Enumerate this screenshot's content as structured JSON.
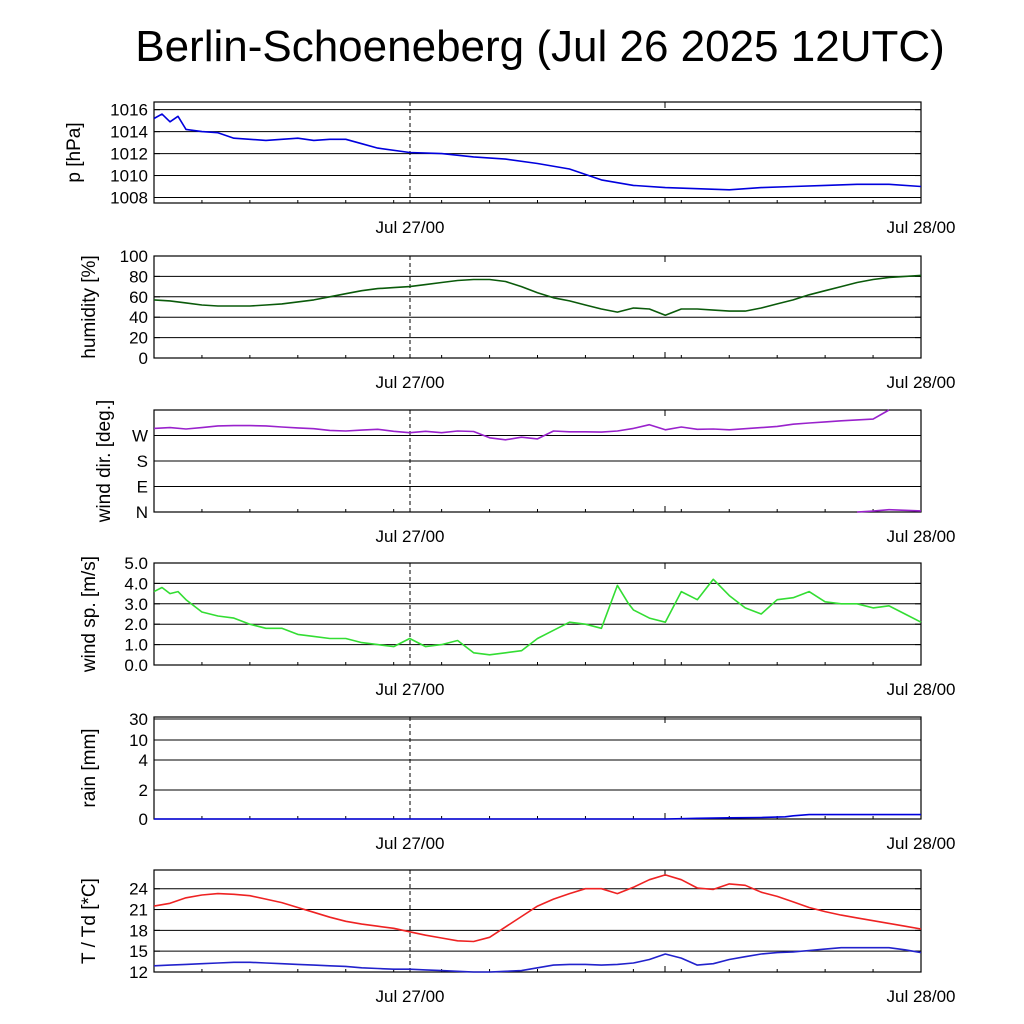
{
  "title": "Berlin-Schoeneberg (Jul 26 2025 12UTC)",
  "chart_data": [
    {
      "type": "line",
      "ylabel": "p [hPa]",
      "x_tick_labels": [
        "Jul 27/00",
        "Jul 28/00"
      ],
      "ylim": [
        1007.5,
        1016.7
      ],
      "yticks": [
        "1016",
        "1014",
        "1012",
        "1010",
        "1008"
      ],
      "ytick_values": [
        1016,
        1014,
        1012,
        1010,
        1008
      ],
      "color": "#0000dd",
      "x": [
        0,
        0.5,
        1,
        1.5,
        2,
        3,
        4,
        5,
        6,
        7,
        8,
        9,
        10,
        11,
        12,
        13,
        14,
        16,
        18,
        20,
        22,
        24,
        26,
        28,
        30,
        32,
        34,
        36,
        38,
        40,
        42,
        44,
        46,
        48
      ],
      "values": [
        1015.2,
        1015.6,
        1014.9,
        1015.4,
        1014.2,
        1014.0,
        1013.9,
        1013.4,
        1013.3,
        1013.2,
        1013.3,
        1013.4,
        1013.2,
        1013.3,
        1013.3,
        1012.9,
        1012.5,
        1012.1,
        1012.0,
        1011.7,
        1011.5,
        1011.1,
        1010.6,
        1009.6,
        1009.1,
        1008.9,
        1008.8,
        1008.7,
        1008.9,
        1009.0,
        1009.1,
        1009.2,
        1009.2,
        1009.0
      ]
    },
    {
      "type": "line",
      "ylabel": "humidity [%]",
      "x_tick_labels": [
        "Jul 27/00",
        "Jul 28/00"
      ],
      "ylim": [
        0,
        100
      ],
      "yticks": [
        "100",
        "80",
        "60",
        "40",
        "20",
        "0"
      ],
      "ytick_values": [
        100,
        80,
        60,
        40,
        20,
        0
      ],
      "color": "#0a5a0a",
      "x": [
        0,
        1,
        2,
        3,
        4,
        5,
        6,
        7,
        8,
        9,
        10,
        11,
        12,
        13,
        14,
        15,
        16,
        17,
        18,
        19,
        20,
        21,
        22,
        23,
        24,
        25,
        26,
        27,
        28,
        29,
        30,
        31,
        32,
        33,
        34,
        35,
        36,
        37,
        38,
        39,
        40,
        41,
        42,
        43,
        44,
        45,
        46,
        47,
        48
      ],
      "values": [
        57,
        56,
        54,
        52,
        51,
        51,
        51,
        52,
        53,
        55,
        57,
        60,
        63,
        66,
        68,
        69,
        70,
        72,
        74,
        76,
        77,
        77,
        75,
        70,
        64,
        59,
        56,
        52,
        48,
        45,
        49,
        48,
        42,
        48,
        48,
        47,
        46,
        46,
        49,
        53,
        57,
        62,
        66,
        70,
        74,
        77,
        79,
        80,
        81
      ]
    },
    {
      "type": "line",
      "ylabel": "wind dir. [deg.]",
      "x_tick_labels": [
        "Jul 27/00",
        "Jul 28/00"
      ],
      "ylim": [
        0,
        360
      ],
      "yticks": [
        "W",
        "S",
        "E",
        "N"
      ],
      "ytick_values": [
        270,
        180,
        90,
        0
      ],
      "color": "#9922cc",
      "x": [
        0,
        1,
        2,
        3,
        4,
        5,
        6,
        7,
        8,
        9,
        10,
        11,
        12,
        13,
        14,
        15,
        16,
        17,
        18,
        19,
        20,
        21,
        22,
        23,
        24,
        25,
        26,
        27,
        28,
        29,
        30,
        31,
        32,
        33,
        34,
        35,
        36,
        37,
        38,
        39,
        40,
        41,
        42,
        43,
        44,
        45,
        46
      ],
      "values": [
        295,
        298,
        293,
        298,
        304,
        305,
        305,
        304,
        300,
        297,
        294,
        288,
        286,
        289,
        292,
        285,
        280,
        285,
        280,
        286,
        284,
        262,
        255,
        264,
        258,
        286,
        283,
        283,
        282,
        286,
        295,
        308,
        290,
        300,
        292,
        293,
        290,
        294,
        298,
        302,
        310,
        314,
        318,
        322,
        325,
        328,
        360
      ],
      "segment2": {
        "x": [
          44,
          45,
          46,
          47,
          48
        ],
        "values": [
          0,
          3,
          8,
          6,
          4
        ]
      }
    },
    {
      "type": "line",
      "ylabel": "wind sp. [m/s]",
      "x_tick_labels": [
        "Jul 27/00",
        "Jul 28/00"
      ],
      "ylim": [
        0,
        5.0
      ],
      "yticks": [
        "5.0",
        "4.0",
        "3.0",
        "2.0",
        "1.0",
        "0.0"
      ],
      "ytick_values": [
        5,
        4,
        3,
        2,
        1,
        0
      ],
      "color": "#33dd33",
      "x": [
        0,
        0.5,
        1,
        1.5,
        2,
        3,
        4,
        5,
        6,
        7,
        8,
        9,
        10,
        11,
        12,
        13,
        14,
        15,
        16,
        17,
        18,
        19,
        20,
        21,
        22,
        23,
        24,
        25,
        26,
        27,
        28,
        29,
        29.7,
        30,
        31,
        32,
        33,
        34,
        35,
        36,
        37,
        38,
        39,
        40,
        41,
        42,
        43,
        44,
        45,
        46,
        47,
        48
      ],
      "values": [
        3.6,
        3.8,
        3.5,
        3.6,
        3.2,
        2.6,
        2.4,
        2.3,
        2.0,
        1.8,
        1.8,
        1.5,
        1.4,
        1.3,
        1.3,
        1.1,
        1.0,
        0.9,
        1.3,
        0.9,
        1.0,
        1.2,
        0.6,
        0.5,
        0.6,
        0.7,
        1.3,
        1.7,
        2.1,
        2.0,
        1.8,
        3.9,
        3.0,
        2.7,
        2.3,
        2.1,
        3.6,
        3.2,
        4.2,
        3.4,
        2.8,
        2.5,
        3.2,
        3.3,
        3.6,
        3.1,
        3.0,
        3.0,
        2.8,
        2.9,
        2.5,
        2.1
      ]
    },
    {
      "type": "line",
      "ylabel": "rain [mm]",
      "x_tick_labels": [
        "Jul 27/00",
        "Jul 28/00"
      ],
      "ylim": [
        0,
        30
      ],
      "yticks": [
        "30",
        "10",
        "4",
        "2",
        "0"
      ],
      "ytick_values": [
        30,
        10,
        4,
        2,
        0
      ],
      "color": "#0000dd",
      "x": [
        0,
        32,
        34,
        36,
        38,
        39.5,
        40,
        41,
        44,
        48
      ],
      "values": [
        0,
        0,
        0.05,
        0.08,
        0.1,
        0.15,
        0.22,
        0.3,
        0.3,
        0.3
      ]
    },
    {
      "type": "line",
      "ylabel": "T / Td [*C]",
      "x_tick_labels": [
        "Jul 27/00",
        "Jul 28/00"
      ],
      "ylim": [
        12,
        26.7
      ],
      "yticks": [
        "24",
        "21",
        "18",
        "15",
        "12"
      ],
      "ytick_values": [
        24,
        21,
        18,
        15,
        12
      ],
      "series": [
        {
          "color": "#ee2222",
          "x": [
            0,
            1,
            2,
            3,
            4,
            5,
            6,
            7,
            8,
            9,
            10,
            11,
            12,
            13,
            14,
            15,
            16,
            17,
            18,
            19,
            20,
            21,
            22,
            23,
            24,
            25,
            26,
            27,
            28,
            29,
            30,
            31,
            32,
            33,
            34,
            35,
            36,
            37,
            38,
            39,
            40,
            41,
            42,
            43,
            44,
            45,
            46,
            47,
            48
          ],
          "values": [
            21.5,
            21.9,
            22.7,
            23.1,
            23.3,
            23.2,
            23.0,
            22.5,
            22.0,
            21.3,
            20.6,
            19.9,
            19.3,
            18.9,
            18.6,
            18.3,
            17.8,
            17.3,
            16.9,
            16.5,
            16.4,
            17.0,
            18.5,
            20.0,
            21.5,
            22.5,
            23.3,
            24.0,
            24.0,
            23.3,
            24.2,
            25.3,
            26.0,
            25.3,
            24.1,
            23.9,
            24.7,
            24.5,
            23.5,
            22.9,
            22.1,
            21.3,
            20.7,
            20.2,
            19.8,
            19.4,
            19.0,
            18.6,
            18.2
          ]
        },
        {
          "color": "#2222cc",
          "x": [
            0,
            1,
            2,
            3,
            4,
            5,
            6,
            7,
            8,
            9,
            10,
            11,
            12,
            13,
            14,
            15,
            16,
            17,
            18,
            19,
            20,
            21,
            22,
            23,
            24,
            25,
            26,
            27,
            28,
            29,
            30,
            31,
            32,
            33,
            34,
            35,
            36,
            37,
            38,
            39,
            40,
            41,
            42,
            43,
            44,
            45,
            46,
            47,
            48
          ],
          "values": [
            12.9,
            13.0,
            13.1,
            13.2,
            13.3,
            13.4,
            13.4,
            13.3,
            13.2,
            13.1,
            13.0,
            12.9,
            12.8,
            12.6,
            12.5,
            12.4,
            12.4,
            12.3,
            12.2,
            12.1,
            12.0,
            12.0,
            12.1,
            12.2,
            12.6,
            13.0,
            13.1,
            13.1,
            13.0,
            13.1,
            13.3,
            13.8,
            14.6,
            14.0,
            13.0,
            13.2,
            13.8,
            14.2,
            14.6,
            14.8,
            14.9,
            15.1,
            15.3,
            15.5,
            15.5,
            15.5,
            15.5,
            15.2,
            14.8
          ]
        }
      ]
    }
  ]
}
